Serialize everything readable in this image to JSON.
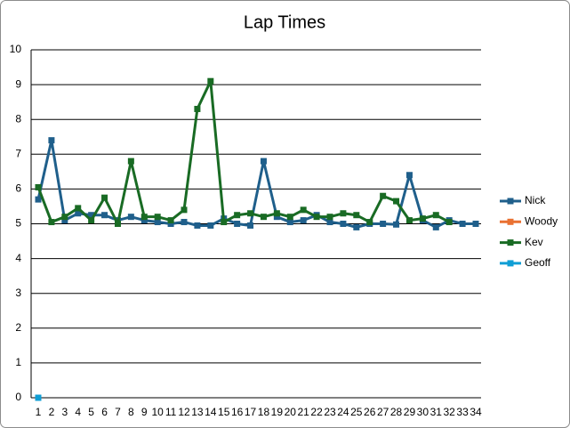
{
  "chart_data": {
    "type": "line",
    "title": "Lap Times",
    "categories": [
      1,
      2,
      3,
      4,
      5,
      6,
      7,
      8,
      9,
      10,
      11,
      12,
      13,
      14,
      15,
      16,
      17,
      18,
      19,
      20,
      21,
      22,
      23,
      24,
      25,
      26,
      27,
      28,
      29,
      30,
      31,
      32,
      33,
      34
    ],
    "series": [
      {
        "name": "Nick",
        "color": "#1f5f8b",
        "values": [
          5.7,
          7.4,
          5.1,
          5.3,
          5.25,
          5.25,
          5.1,
          5.2,
          5.1,
          5.05,
          5.0,
          5.05,
          4.95,
          4.95,
          5.15,
          5.0,
          4.95,
          6.8,
          5.2,
          5.05,
          5.1,
          5.25,
          5.05,
          5.0,
          4.9,
          5.0,
          5.0,
          4.98,
          6.4,
          5.1,
          4.9,
          5.1,
          5.0,
          5.0
        ]
      },
      {
        "name": "Woody",
        "color": "#e97132",
        "values": [
          null,
          null,
          null,
          null,
          null,
          null,
          null,
          null,
          null,
          null,
          null,
          null,
          null,
          null,
          null,
          null,
          null,
          null,
          null,
          null,
          null,
          null,
          null,
          null,
          null,
          null,
          null,
          null,
          null,
          null,
          null,
          null,
          null,
          null
        ]
      },
      {
        "name": "Kev",
        "color": "#196b24",
        "values": [
          6.05,
          5.05,
          5.2,
          5.45,
          5.1,
          5.75,
          5.0,
          6.8,
          5.2,
          5.2,
          5.1,
          5.4,
          8.3,
          9.1,
          5.05,
          5.25,
          5.3,
          5.2,
          5.3,
          5.2,
          5.4,
          5.2,
          5.2,
          5.3,
          5.25,
          5.05,
          5.8,
          5.65,
          5.1,
          5.15,
          5.25,
          5.05,
          null,
          null
        ]
      },
      {
        "name": "Geoff",
        "color": "#0f9ed5",
        "values": [
          0,
          null,
          null,
          null,
          null,
          null,
          null,
          null,
          null,
          null,
          null,
          null,
          null,
          null,
          null,
          null,
          null,
          null,
          null,
          null,
          null,
          null,
          null,
          null,
          null,
          null,
          null,
          null,
          null,
          null,
          null,
          null,
          null,
          null
        ]
      }
    ],
    "ylim": [
      0,
      10
    ],
    "yticks": [
      0,
      1,
      2,
      3,
      4,
      5,
      6,
      7,
      8,
      9,
      10
    ],
    "grid": true,
    "legend": "right"
  }
}
